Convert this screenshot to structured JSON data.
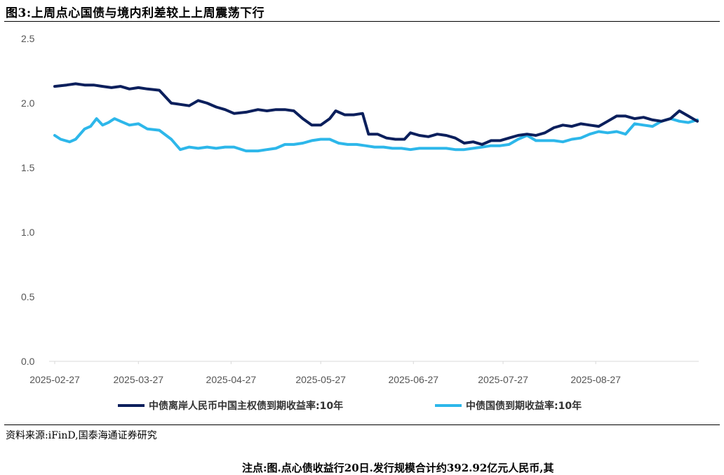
{
  "header": {
    "title": "图3:上周点心国债与境内利差较上上周震荡下行"
  },
  "footer": {
    "source": "资料来源:iFinD,国泰海通证券研究",
    "cutoff_text": "注点:图.点心债收益行20日.发行规模合计约392.92亿元人民币,其"
  },
  "colors": {
    "series_dark": "#0b1f5c",
    "series_light": "#2db7ea"
  },
  "chart_data": {
    "type": "line",
    "title": "",
    "xlabel": "",
    "ylabel": "",
    "ylim": [
      0.0,
      2.5
    ],
    "yticks": [
      "2.5",
      "2.0",
      "1.5",
      "1.0",
      "0.5",
      "0.0"
    ],
    "xticks": [
      {
        "date": "2025-02-27",
        "label": "2025-02-27"
      },
      {
        "date": "2025-03-27",
        "label": "2025-03-27"
      },
      {
        "date": "2025-04-27",
        "label": "2025-04-27"
      },
      {
        "date": "2025-05-27",
        "label": "2025-05-27"
      },
      {
        "date": "2025-06-27",
        "label": "2025-06-27"
      },
      {
        "date": "2025-07-27",
        "label": "2025-07-27"
      },
      {
        "date": "2025-08-27",
        "label": "2025-08-27"
      }
    ],
    "grid": false,
    "legend_position": "bottom",
    "series": [
      {
        "name": "中债离岸人民币中国主权债到期收益率:10年",
        "points": [
          [
            "2025-02-27",
            2.13
          ],
          [
            "2025-03-03",
            2.14
          ],
          [
            "2025-03-06",
            2.15
          ],
          [
            "2025-03-09",
            2.14
          ],
          [
            "2025-03-12",
            2.14
          ],
          [
            "2025-03-15",
            2.13
          ],
          [
            "2025-03-18",
            2.12
          ],
          [
            "2025-03-21",
            2.13
          ],
          [
            "2025-03-24",
            2.11
          ],
          [
            "2025-03-27",
            2.12
          ],
          [
            "2025-03-30",
            2.11
          ],
          [
            "2025-04-03",
            2.1
          ],
          [
            "2025-04-07",
            2.0
          ],
          [
            "2025-04-10",
            1.99
          ],
          [
            "2025-04-13",
            1.98
          ],
          [
            "2025-04-16",
            2.02
          ],
          [
            "2025-04-19",
            2.0
          ],
          [
            "2025-04-22",
            1.97
          ],
          [
            "2025-04-25",
            1.95
          ],
          [
            "2025-04-28",
            1.92
          ],
          [
            "2025-05-02",
            1.93
          ],
          [
            "2025-05-06",
            1.95
          ],
          [
            "2025-05-09",
            1.94
          ],
          [
            "2025-05-12",
            1.95
          ],
          [
            "2025-05-15",
            1.95
          ],
          [
            "2025-05-18",
            1.94
          ],
          [
            "2025-05-21",
            1.88
          ],
          [
            "2025-05-24",
            1.83
          ],
          [
            "2025-05-27",
            1.83
          ],
          [
            "2025-05-30",
            1.88
          ],
          [
            "2025-06-01",
            1.94
          ],
          [
            "2025-06-04",
            1.91
          ],
          [
            "2025-06-07",
            1.91
          ],
          [
            "2025-06-10",
            1.92
          ],
          [
            "2025-06-12",
            1.76
          ],
          [
            "2025-06-15",
            1.76
          ],
          [
            "2025-06-18",
            1.73
          ],
          [
            "2025-06-21",
            1.72
          ],
          [
            "2025-06-24",
            1.72
          ],
          [
            "2025-06-26",
            1.77
          ],
          [
            "2025-06-29",
            1.75
          ],
          [
            "2025-07-02",
            1.74
          ],
          [
            "2025-07-05",
            1.76
          ],
          [
            "2025-07-08",
            1.75
          ],
          [
            "2025-07-11",
            1.73
          ],
          [
            "2025-07-14",
            1.69
          ],
          [
            "2025-07-17",
            1.7
          ],
          [
            "2025-07-20",
            1.68
          ],
          [
            "2025-07-23",
            1.71
          ],
          [
            "2025-07-26",
            1.71
          ],
          [
            "2025-07-29",
            1.73
          ],
          [
            "2025-08-01",
            1.75
          ],
          [
            "2025-08-04",
            1.76
          ],
          [
            "2025-08-07",
            1.75
          ],
          [
            "2025-08-10",
            1.77
          ],
          [
            "2025-08-13",
            1.81
          ],
          [
            "2025-08-16",
            1.83
          ],
          [
            "2025-08-19",
            1.82
          ],
          [
            "2025-08-22",
            1.84
          ],
          [
            "2025-08-25",
            1.83
          ],
          [
            "2025-08-28",
            1.82
          ],
          [
            "2025-08-31",
            1.86
          ],
          [
            "2025-09-03",
            1.9
          ],
          [
            "2025-09-06",
            1.9
          ],
          [
            "2025-09-09",
            1.88
          ],
          [
            "2025-09-12",
            1.89
          ],
          [
            "2025-09-15",
            1.87
          ],
          [
            "2025-09-18",
            1.86
          ],
          [
            "2025-09-21",
            1.88
          ],
          [
            "2025-09-24",
            1.94
          ],
          [
            "2025-09-27",
            1.9
          ],
          [
            "2025-09-30",
            1.86
          ]
        ]
      },
      {
        "name": "中债国债到期收益率:10年",
        "points": [
          [
            "2025-02-27",
            1.75
          ],
          [
            "2025-03-01",
            1.72
          ],
          [
            "2025-03-04",
            1.7
          ],
          [
            "2025-03-06",
            1.72
          ],
          [
            "2025-03-09",
            1.8
          ],
          [
            "2025-03-11",
            1.82
          ],
          [
            "2025-03-13",
            1.88
          ],
          [
            "2025-03-15",
            1.83
          ],
          [
            "2025-03-17",
            1.85
          ],
          [
            "2025-03-19",
            1.88
          ],
          [
            "2025-03-21",
            1.86
          ],
          [
            "2025-03-24",
            1.83
          ],
          [
            "2025-03-27",
            1.84
          ],
          [
            "2025-03-30",
            1.8
          ],
          [
            "2025-04-03",
            1.79
          ],
          [
            "2025-04-07",
            1.72
          ],
          [
            "2025-04-10",
            1.64
          ],
          [
            "2025-04-13",
            1.66
          ],
          [
            "2025-04-16",
            1.65
          ],
          [
            "2025-04-19",
            1.66
          ],
          [
            "2025-04-22",
            1.65
          ],
          [
            "2025-04-25",
            1.66
          ],
          [
            "2025-04-28",
            1.66
          ],
          [
            "2025-05-02",
            1.63
          ],
          [
            "2025-05-06",
            1.63
          ],
          [
            "2025-05-09",
            1.64
          ],
          [
            "2025-05-12",
            1.65
          ],
          [
            "2025-05-15",
            1.68
          ],
          [
            "2025-05-18",
            1.68
          ],
          [
            "2025-05-21",
            1.69
          ],
          [
            "2025-05-24",
            1.71
          ],
          [
            "2025-05-27",
            1.72
          ],
          [
            "2025-05-30",
            1.72
          ],
          [
            "2025-06-02",
            1.69
          ],
          [
            "2025-06-05",
            1.68
          ],
          [
            "2025-06-08",
            1.68
          ],
          [
            "2025-06-11",
            1.67
          ],
          [
            "2025-06-14",
            1.66
          ],
          [
            "2025-06-17",
            1.66
          ],
          [
            "2025-06-20",
            1.65
          ],
          [
            "2025-06-23",
            1.65
          ],
          [
            "2025-06-26",
            1.64
          ],
          [
            "2025-06-29",
            1.65
          ],
          [
            "2025-07-02",
            1.65
          ],
          [
            "2025-07-05",
            1.65
          ],
          [
            "2025-07-08",
            1.65
          ],
          [
            "2025-07-11",
            1.64
          ],
          [
            "2025-07-14",
            1.64
          ],
          [
            "2025-07-17",
            1.65
          ],
          [
            "2025-07-20",
            1.66
          ],
          [
            "2025-07-23",
            1.67
          ],
          [
            "2025-07-26",
            1.67
          ],
          [
            "2025-07-29",
            1.68
          ],
          [
            "2025-08-01",
            1.72
          ],
          [
            "2025-08-04",
            1.75
          ],
          [
            "2025-08-07",
            1.71
          ],
          [
            "2025-08-10",
            1.71
          ],
          [
            "2025-08-13",
            1.71
          ],
          [
            "2025-08-16",
            1.7
          ],
          [
            "2025-08-19",
            1.72
          ],
          [
            "2025-08-22",
            1.73
          ],
          [
            "2025-08-25",
            1.76
          ],
          [
            "2025-08-28",
            1.78
          ],
          [
            "2025-08-31",
            1.77
          ],
          [
            "2025-09-03",
            1.78
          ],
          [
            "2025-09-06",
            1.76
          ],
          [
            "2025-09-09",
            1.84
          ],
          [
            "2025-09-12",
            1.83
          ],
          [
            "2025-09-15",
            1.82
          ],
          [
            "2025-09-18",
            1.86
          ],
          [
            "2025-09-21",
            1.88
          ],
          [
            "2025-09-24",
            1.86
          ],
          [
            "2025-09-27",
            1.85
          ],
          [
            "2025-09-30",
            1.87
          ]
        ]
      }
    ]
  }
}
